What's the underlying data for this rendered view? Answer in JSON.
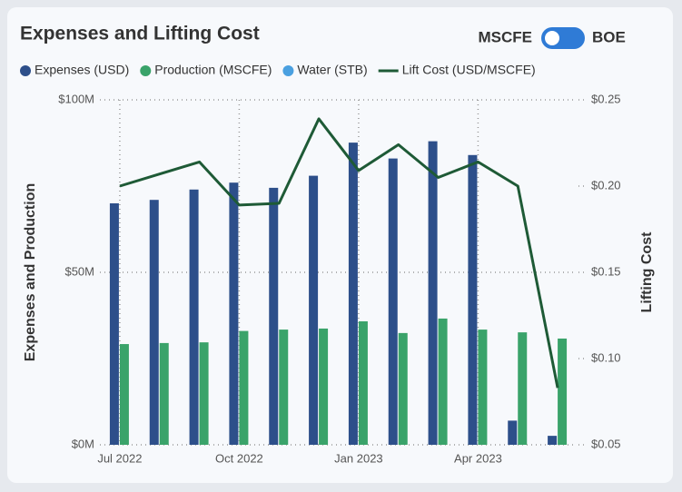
{
  "chart_data": {
    "type": "bar_line",
    "title": "Expenses and Lifting Cost",
    "toggle": {
      "left": "MSCFE",
      "right": "BOE"
    },
    "categories": [
      "Jul 2022",
      null,
      null,
      "Oct 2022",
      null,
      null,
      "Jan 2023",
      null,
      null,
      "Apr 2023",
      null,
      null
    ],
    "series": [
      {
        "name": "Expenses (USD)",
        "color": "#2d4f8a",
        "values": [
          70,
          71,
          74,
          76,
          74.5,
          78,
          87.6,
          83,
          88,
          84,
          7,
          2.6
        ]
      },
      {
        "name": "Production (MSCFE)",
        "color": "#3aa36a",
        "values": [
          29.2,
          29.5,
          29.7,
          33,
          33.4,
          33.7,
          35.8,
          32.4,
          36.6,
          33.4,
          32.6,
          30.8
        ]
      },
      {
        "name": "Water (STB)",
        "color": "#4aa0e0",
        "values": [
          null,
          null,
          null,
          null,
          null,
          null,
          null,
          null,
          null,
          null,
          null,
          null
        ]
      },
      {
        "name": "Lift Cost (USD/MSCFE)",
        "color": "#1e5a36",
        "axis": "y2",
        "values": [
          0.2,
          0.207,
          0.214,
          0.189,
          0.19,
          0.239,
          0.209,
          0.224,
          0.205,
          0.214,
          0.2,
          0.083
        ]
      }
    ],
    "ylabel": "Expenses and Production",
    "y2label": "Lifting Cost",
    "ylim": [
      0,
      100
    ],
    "yticks": [
      {
        "value": 0,
        "label": "$0M"
      },
      {
        "value": 50,
        "label": "$50M"
      },
      {
        "value": 100,
        "label": "$100M"
      }
    ],
    "y2lim": [
      0.05,
      0.25
    ],
    "y2ticks": [
      {
        "value": 0.05,
        "label": "$0.05"
      },
      {
        "value": 0.1,
        "label": "$0.10"
      },
      {
        "value": 0.15,
        "label": "$0.15"
      },
      {
        "value": 0.2,
        "label": "$0.20"
      },
      {
        "value": 0.25,
        "label": "$0.25"
      }
    ],
    "grid": true
  }
}
